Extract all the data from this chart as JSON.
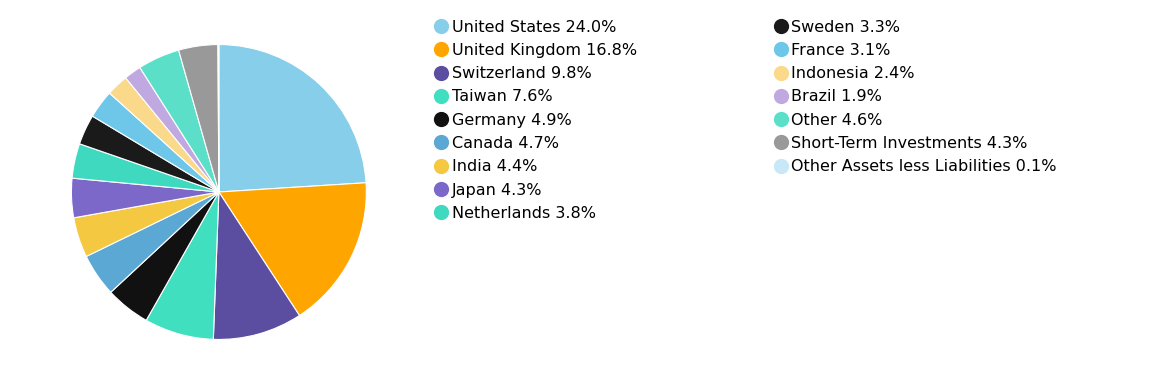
{
  "slices": [
    {
      "label": "United States 24.0%",
      "value": 24.0,
      "color": "#87CEEB"
    },
    {
      "label": "United Kingdom 16.8%",
      "value": 16.8,
      "color": "#FFA500"
    },
    {
      "label": "Switzerland 9.8%",
      "value": 9.8,
      "color": "#5B4EA0"
    },
    {
      "label": "Taiwan 7.6%",
      "value": 7.6,
      "color": "#40DFBF"
    },
    {
      "label": "Germany 4.9%",
      "value": 4.9,
      "color": "#111111"
    },
    {
      "label": "Canada 4.7%",
      "value": 4.7,
      "color": "#5BA8D4"
    },
    {
      "label": "India 4.4%",
      "value": 4.4,
      "color": "#F5C842"
    },
    {
      "label": "Japan 4.3%",
      "value": 4.3,
      "color": "#7B68C8"
    },
    {
      "label": "Netherlands 3.8%",
      "value": 3.8,
      "color": "#3FD9C0"
    },
    {
      "label": "Sweden 3.3%",
      "value": 3.3,
      "color": "#1A1A1A"
    },
    {
      "label": "France 3.1%",
      "value": 3.1,
      "color": "#6EC6E8"
    },
    {
      "label": "Indonesia 2.4%",
      "value": 2.4,
      "color": "#FAD98A"
    },
    {
      "label": "Brazil 1.9%",
      "value": 1.9,
      "color": "#C0A8E0"
    },
    {
      "label": "Other 4.6%",
      "value": 4.6,
      "color": "#5CDFC8"
    },
    {
      "label": "Short-Term Investments 4.3%",
      "value": 4.3,
      "color": "#999999"
    },
    {
      "label": "Other Assets less Liabilities 0.1%",
      "value": 0.1,
      "color": "#C8E8F8"
    }
  ],
  "legend_col1_indices": [
    0,
    1,
    2,
    3,
    4,
    5,
    6,
    7,
    8
  ],
  "legend_col2_indices": [
    9,
    10,
    11,
    12,
    13,
    14,
    15
  ],
  "figsize": [
    11.52,
    3.84
  ],
  "dpi": 100,
  "marker_size": 12,
  "fontsize": 11.5
}
